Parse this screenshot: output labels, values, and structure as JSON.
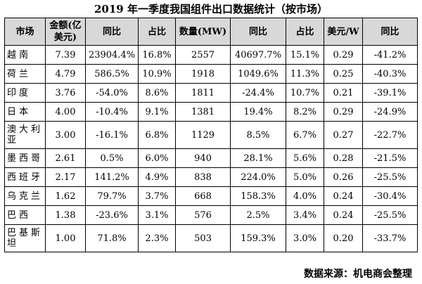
{
  "title": "2019 年一季度我国组件出口数据统计（按市场）",
  "table": {
    "headers": [
      "市场",
      "金额(亿美元)",
      "同比",
      "占比",
      "数量(MW)",
      "同比",
      "占比",
      "美元/W",
      "同比"
    ],
    "rows": [
      [
        "越南",
        "7.39",
        "23904.4%",
        "16.8%",
        "2557",
        "40697.7%",
        "15.1%",
        "0.29",
        "-41.2%"
      ],
      [
        "荷兰",
        "4.79",
        "586.5%",
        "10.9%",
        "1918",
        "1049.6%",
        "11.3%",
        "0.25",
        "-40.3%"
      ],
      [
        "印度",
        "3.76",
        "-54.0%",
        "8.6%",
        "1811",
        "-24.4%",
        "10.7%",
        "0.21",
        "-39.1%"
      ],
      [
        "日本",
        "4.00",
        "-10.4%",
        "9.1%",
        "1381",
        "19.4%",
        "8.2%",
        "0.29",
        "-24.9%"
      ],
      [
        "澳大利亚",
        "3.00",
        "-16.1%",
        "6.8%",
        "1129",
        "8.5%",
        "6.7%",
        "0.27",
        "-22.7%"
      ],
      [
        "墨西哥",
        "2.61",
        "0.5%",
        "6.0%",
        "940",
        "28.1%",
        "5.6%",
        "0.28",
        "-21.5%"
      ],
      [
        "西班牙",
        "2.17",
        "141.2%",
        "4.9%",
        "838",
        "224.0%",
        "5.0%",
        "0.26",
        "-25.5%"
      ],
      [
        "乌克兰",
        "1.62",
        "79.7%",
        "3.7%",
        "668",
        "158.3%",
        "4.0%",
        "0.24",
        "-30.4%"
      ],
      [
        "巴西",
        "1.38",
        "-23.6%",
        "3.1%",
        "576",
        "2.5%",
        "3.4%",
        "0.24",
        "-25.5%"
      ],
      [
        "巴基斯坦",
        "1.00",
        "71.8%",
        "2.3%",
        "503",
        "159.3%",
        "3.0%",
        "0.20",
        "-33.7%"
      ]
    ]
  },
  "source": "数据来源：机电商会整理"
}
